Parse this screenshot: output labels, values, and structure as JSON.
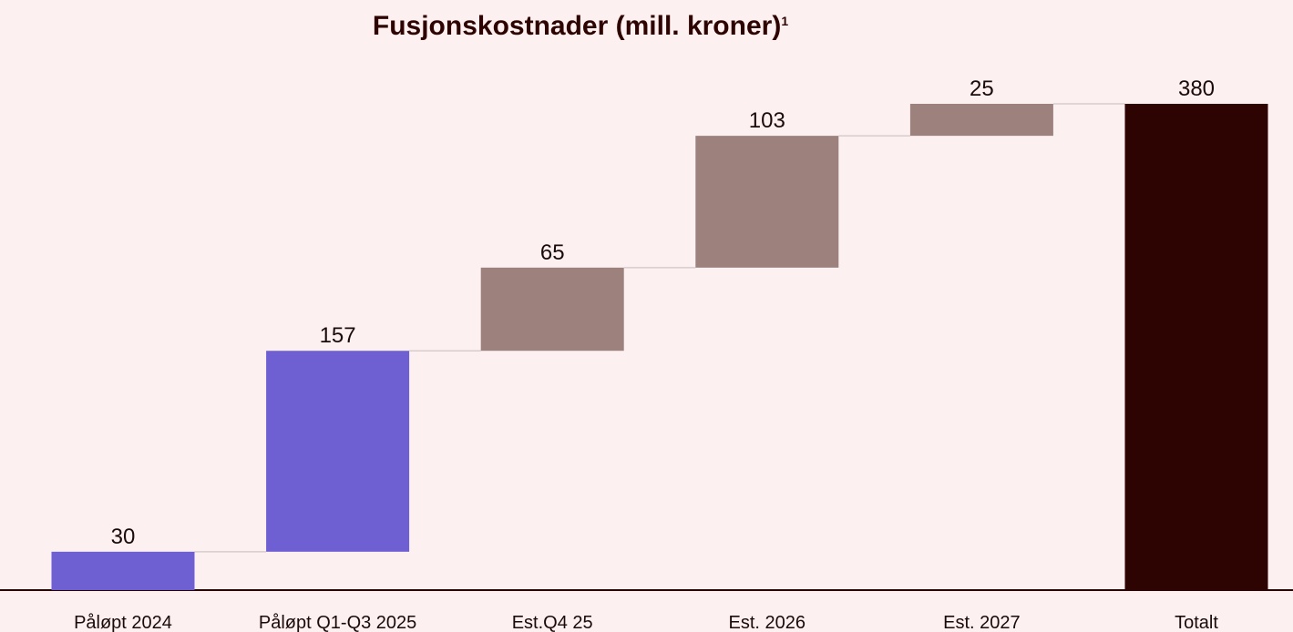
{
  "chart_data": {
    "type": "waterfall",
    "title": "Fusjonskostnader (mill. kroner)",
    "title_superscript": "1",
    "categories": [
      "Påløpt 2024",
      "Påløpt Q1-Q3 2025",
      "Est.Q4 25",
      "Est. 2026",
      "Est. 2027",
      "Totalt"
    ],
    "values": [
      30,
      157,
      65,
      103,
      25,
      380
    ],
    "colors": [
      "#6e5fd3",
      "#6e5fd3",
      "#9c817d",
      "#9c817d",
      "#9c817d",
      "#2e0402"
    ],
    "totals": [
      false,
      false,
      false,
      false,
      false,
      true
    ],
    "ylim": [
      0,
      380
    ]
  }
}
